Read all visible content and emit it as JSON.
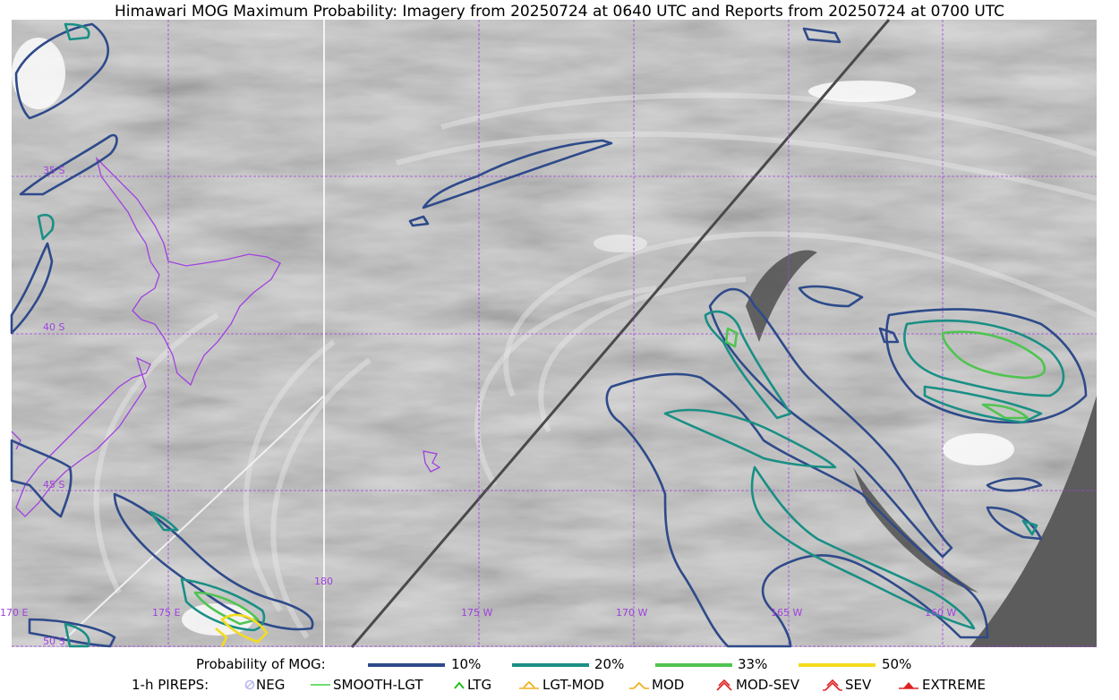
{
  "title": "Himawari MOG Maximum Probability: Imagery from 20250724 at 0640 UTC and Reports from 20250724 at 0700 UTC",
  "map": {
    "lat_labels": [
      "35 S",
      "40 S",
      "45 S",
      "50 S"
    ],
    "lon_labels": [
      "170 E",
      "175 E",
      "180",
      "175 W",
      "170 W",
      "165 W",
      "160 W"
    ],
    "colors": {
      "p10": "#2e4a8a",
      "p20": "#1a8f85",
      "p33": "#4fc450",
      "p50": "#f5dc1e",
      "grid": "#a040e0",
      "coast": "#a040e0",
      "space": "#5c5c5c"
    }
  },
  "legend": {
    "probability_title": "Probability of MOG:",
    "levels": [
      {
        "label": "10%",
        "color": "#2e4a8a"
      },
      {
        "label": "20%",
        "color": "#1a8f85"
      },
      {
        "label": "33%",
        "color": "#4fc450"
      },
      {
        "label": "50%",
        "color": "#f5dc1e"
      }
    ],
    "pireps_title": "1-h PIREPS:",
    "pireps": [
      {
        "label": "NEG",
        "icon": "neg-circle-icon",
        "color": "#b8b8f0"
      },
      {
        "label": "SMOOTH-LGT",
        "icon": "line-icon",
        "color": "#40d040"
      },
      {
        "label": "LTG",
        "icon": "caret-icon",
        "color": "#20c020"
      },
      {
        "label": "LGT-MOD",
        "icon": "caret-bar-icon",
        "color": "#f0b020"
      },
      {
        "label": "MOD",
        "icon": "caret-icon",
        "color": "#f0b020"
      },
      {
        "label": "MOD-SEV",
        "icon": "double-caret-icon",
        "color": "#e02020"
      },
      {
        "label": "SEV",
        "icon": "double-caret-icon",
        "color": "#e02020"
      },
      {
        "label": "EXTREME",
        "icon": "filled-caret-icon",
        "color": "#e02020"
      }
    ]
  }
}
